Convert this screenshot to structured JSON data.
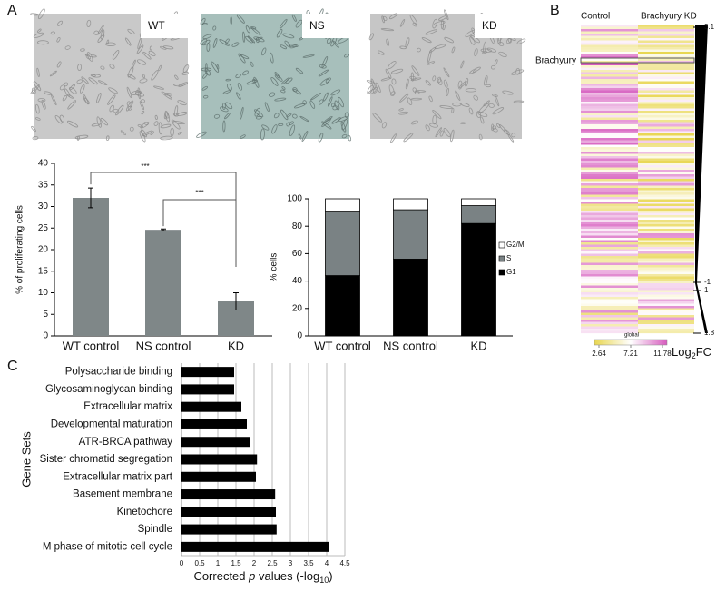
{
  "panels": [
    "A",
    "B",
    "C"
  ],
  "images": [
    "WT",
    "NS",
    "KD"
  ],
  "chart_data": [
    {
      "type": "bar",
      "ylabel": "% of proliferating cells",
      "categories": [
        "WT control",
        "NS control",
        "KD"
      ],
      "values": [
        32,
        24.6,
        8
      ],
      "errors": [
        2.3,
        0.2,
        2
      ],
      "color": "#7f8788",
      "ylim": [
        0,
        40
      ],
      "yticks": [
        0,
        5,
        10,
        15,
        20,
        25,
        30,
        35,
        40
      ],
      "annotations": [
        "***",
        "***"
      ]
    },
    {
      "type": "stacked",
      "ylabel": "% cells",
      "categories": [
        "WT control",
        "NS control",
        "KD"
      ],
      "series": [
        {
          "name": "G1",
          "color": "#000000",
          "values": [
            44,
            56,
            82
          ]
        },
        {
          "name": "S",
          "color": "#7a8284",
          "values": [
            47,
            36,
            13
          ]
        },
        {
          "name": "G2/M",
          "color": "#ffffff",
          "values": [
            9,
            8,
            5
          ]
        }
      ],
      "ylim": [
        0,
        100
      ],
      "yticks": [
        0,
        20,
        40,
        60,
        80,
        100
      ]
    },
    {
      "type": "heatmap",
      "columns": [
        "Control",
        "Brachyury KD"
      ],
      "highlight": "Brachyury",
      "colorbar": {
        "label": "global",
        "ticks": [
          2.64,
          7.21,
          11.78
        ]
      },
      "fc_label": [
        "Log",
        "2",
        "FC"
      ],
      "fc_ticks": [
        3.1,
        -1,
        1,
        1.8
      ]
    },
    {
      "type": "hbar",
      "ylabel": "Gene Sets",
      "xlabel": [
        "Corrected ",
        "p",
        " values (-log",
        "10",
        ")"
      ],
      "categories": [
        "Polysaccharide binding",
        "Glycosaminoglycan binding",
        "Extracellular matrix",
        "Developmental maturation",
        "ATR-BRCA pathway",
        "Sister chromatid segregation",
        "Extracellular matrix part",
        "Basement membrane",
        "Kinetochore",
        "Spindle",
        "M phase of mitotic cell cycle"
      ],
      "values": [
        1.45,
        1.45,
        1.65,
        1.8,
        1.88,
        2.08,
        2.05,
        2.58,
        2.6,
        2.62,
        4.05
      ],
      "color": "#000000",
      "xlim": [
        0,
        4.5
      ],
      "xticks": [
        0,
        0.5,
        1,
        1.5,
        2,
        2.5,
        3,
        3.5,
        4,
        4.5
      ],
      "grid": true
    }
  ]
}
